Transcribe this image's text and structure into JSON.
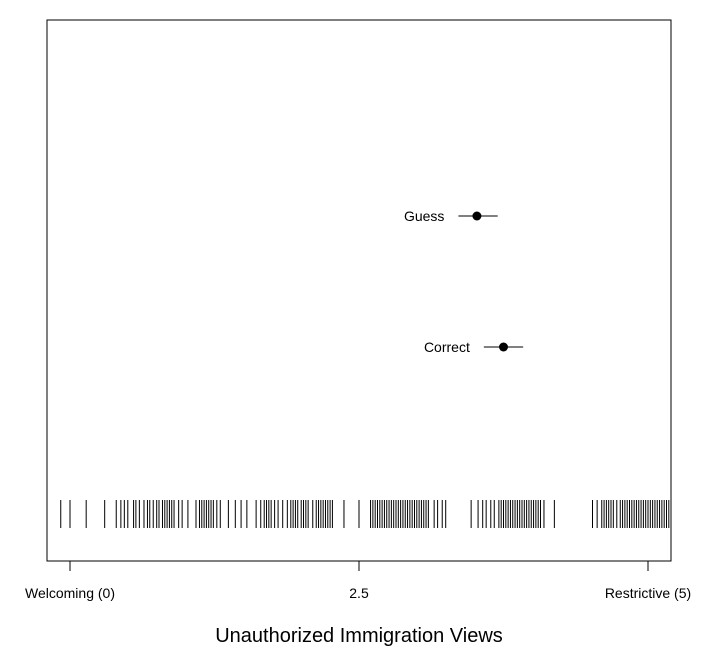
{
  "chart_data": {
    "type": "scatter",
    "title": "",
    "xlabel": "Unauthorized Immigration Views",
    "ylabel": "",
    "xlim": [
      0,
      5
    ],
    "x_ticks": [
      {
        "value": 0,
        "label": "Welcoming (0)"
      },
      {
        "value": 2.5,
        "label": "2.5"
      },
      {
        "value": 5,
        "label": "Restrictive (5)"
      }
    ],
    "grid": false,
    "points": [
      {
        "label": "Guess",
        "estimate": 3.52,
        "ci": [
          3.36,
          3.7
        ]
      },
      {
        "label": "Correct",
        "estimate": 3.75,
        "ci": [
          3.58,
          3.92
        ]
      }
    ],
    "rug": [
      -0.08,
      0.0,
      0.14,
      0.3,
      0.4,
      0.44,
      0.47,
      0.5,
      0.55,
      0.57,
      0.6,
      0.64,
      0.67,
      0.69,
      0.72,
      0.75,
      0.77,
      0.8,
      0.82,
      0.84,
      0.86,
      0.88,
      0.9,
      0.94,
      0.97,
      1.02,
      1.09,
      1.12,
      1.14,
      1.16,
      1.18,
      1.2,
      1.22,
      1.24,
      1.27,
      1.3,
      1.37,
      1.43,
      1.48,
      1.53,
      1.61,
      1.65,
      1.68,
      1.7,
      1.72,
      1.74,
      1.77,
      1.8,
      1.84,
      1.88,
      1.91,
      1.93,
      1.95,
      1.97,
      2.0,
      2.02,
      2.04,
      2.06,
      2.1,
      2.13,
      2.15,
      2.17,
      2.19,
      2.21,
      2.23,
      2.25,
      2.27,
      2.37,
      2.5,
      2.6,
      2.62,
      2.64,
      2.66,
      2.68,
      2.7,
      2.72,
      2.74,
      2.76,
      2.78,
      2.8,
      2.82,
      2.84,
      2.86,
      2.88,
      2.9,
      2.92,
      2.94,
      2.96,
      2.98,
      3.0,
      3.02,
      3.04,
      3.06,
      3.08,
      3.1,
      3.15,
      3.18,
      3.22,
      3.25,
      3.47,
      3.53,
      3.57,
      3.6,
      3.64,
      3.67,
      3.71,
      3.73,
      3.75,
      3.77,
      3.79,
      3.81,
      3.83,
      3.85,
      3.87,
      3.89,
      3.91,
      3.93,
      3.95,
      3.97,
      3.99,
      4.01,
      4.03,
      4.05,
      4.07,
      4.1,
      4.19,
      4.52,
      4.56,
      4.6,
      4.62,
      4.64,
      4.66,
      4.68,
      4.7,
      4.73,
      4.76,
      4.78,
      4.8,
      4.82,
      4.84,
      4.86,
      4.88,
      4.9,
      4.92,
      4.94,
      4.96,
      4.98,
      5.0,
      5.02,
      5.04,
      5.06,
      5.08,
      5.1,
      5.12,
      5.14,
      5.16,
      5.18
    ]
  }
}
